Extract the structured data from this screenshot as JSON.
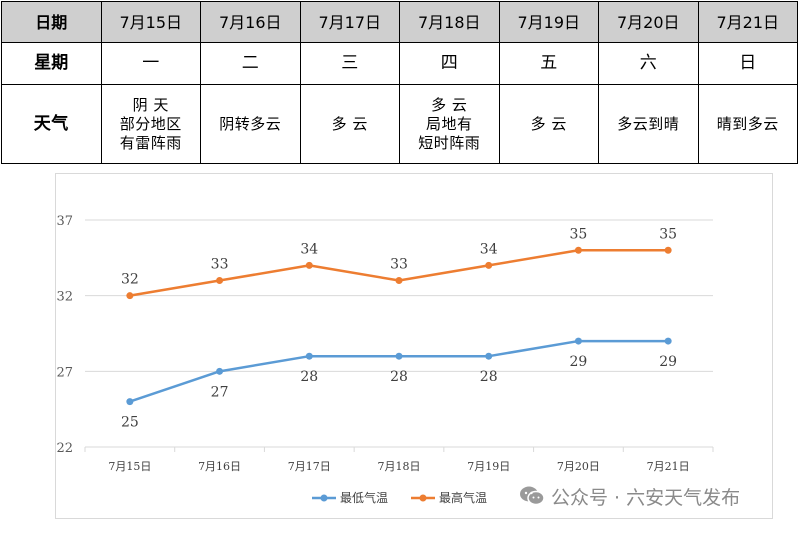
{
  "table": {
    "row_headers": {
      "date": "日期",
      "weekday": "星期",
      "weather": "天气"
    },
    "dates": [
      "7月15日",
      "7月16日",
      "7月17日",
      "7月18日",
      "7月19日",
      "7月20日",
      "7月21日"
    ],
    "weekdays": [
      "一",
      "二",
      "三",
      "四",
      "五",
      "六",
      "日"
    ],
    "weather": [
      "阴 天\n部分地区\n有雷阵雨",
      "阴转多云",
      "多 云",
      "多 云\n局地有\n短时阵雨",
      "多 云",
      "多云到晴",
      "晴到多云"
    ]
  },
  "chart_data": {
    "type": "line",
    "categories": [
      "7月15日",
      "7月16日",
      "7月17日",
      "7月18日",
      "7月19日",
      "7月20日",
      "7月21日"
    ],
    "series": [
      {
        "name": "最低气温",
        "values": [
          25,
          27,
          28,
          28,
          28,
          29,
          29
        ],
        "color": "#5b9bd5"
      },
      {
        "name": "最高气温",
        "values": [
          32,
          33,
          34,
          33,
          34,
          35,
          35
        ],
        "color": "#ed7d31"
      }
    ],
    "yticks": [
      22,
      27,
      32,
      37
    ],
    "ylim": [
      22,
      37
    ],
    "grid": true,
    "legend_position": "bottom"
  },
  "watermark": {
    "text": "公众号 · 六安天气发布",
    "icon": "wechat-icon"
  }
}
